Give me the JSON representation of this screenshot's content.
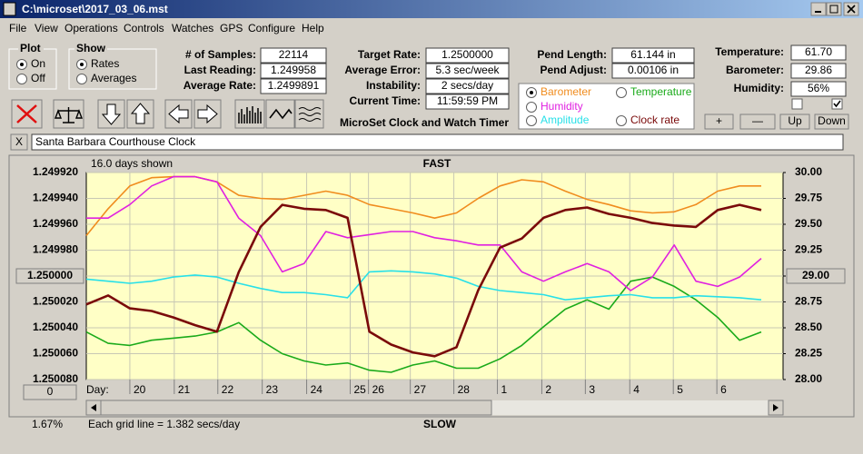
{
  "window": {
    "title": "C:\\microset\\2017_03_06.mst"
  },
  "menu": [
    "File",
    "View",
    "Operations",
    "Controls",
    "Watches",
    "GPS",
    "Configure",
    "Help"
  ],
  "plot": {
    "title": "Plot",
    "options": [
      "On",
      "Off"
    ],
    "selected": 0
  },
  "show": {
    "title": "Show",
    "options": [
      "Rates",
      "Averages"
    ],
    "selected": 0
  },
  "stats": [
    {
      "label": "# of Samples:",
      "value": "22114"
    },
    {
      "label": "Last Reading:",
      "value": "1.249958"
    },
    {
      "label": "Average Rate:",
      "value": "1.2499891"
    }
  ],
  "rates": [
    {
      "label": "Target Rate:",
      "value": "1.2500000"
    },
    {
      "label": "Average Error:",
      "value": "5.3 sec/week"
    },
    {
      "label": "Instability:",
      "value": "2 secs/day"
    },
    {
      "label": "Current Time:",
      "value": "11:59:59 PM"
    }
  ],
  "app_name": "MicroSet Clock and Watch Timer",
  "pendulum": [
    {
      "label": "Pend Length:",
      "value": "61.144 in"
    },
    {
      "label": "Pend Adjust:",
      "value": "0.00106 in"
    }
  ],
  "environment": [
    {
      "label": "Temperature:",
      "value": "61.70"
    },
    {
      "label": "Barometer:",
      "value": "29.86"
    },
    {
      "label": "Humidity:",
      "value": "56%"
    }
  ],
  "environment_checks": [
    false,
    true
  ],
  "buttons": [
    "+",
    "—",
    "Up",
    "Down"
  ],
  "clock": {
    "close": "X",
    "name": "Santa Barbara Courthouse Clock"
  },
  "chart_data": {
    "type": "line",
    "subtitle": "16.0 days shown",
    "top_label": "FAST",
    "bottom_label": "SLOW",
    "x_label": "Day:",
    "note": "Each grid line = 1.382 secs/day",
    "offset": "0",
    "zoom": "1.67%",
    "grid": true,
    "selected": 0,
    "xlim": [
      0,
      16
    ],
    "xticks": [
      {
        "value": 1.0,
        "label": "20"
      },
      {
        "value": 2.02,
        "label": "21"
      },
      {
        "value": 3.02,
        "label": "22"
      },
      {
        "value": 4.04,
        "label": "23"
      },
      {
        "value": 5.06,
        "label": "24"
      },
      {
        "value": 6.06,
        "label": "25"
      },
      {
        "value": 6.48,
        "label": "26"
      },
      {
        "value": 7.44,
        "label": "27"
      },
      {
        "value": 8.44,
        "label": "28"
      },
      {
        "value": 9.44,
        "label": "1"
      },
      {
        "value": 10.46,
        "label": "2"
      },
      {
        "value": 11.46,
        "label": "3"
      },
      {
        "value": 12.48,
        "label": "4"
      },
      {
        "value": 13.48,
        "label": "5"
      },
      {
        "value": 14.48,
        "label": "6"
      }
    ],
    "ylim": [
      1.25008,
      1.24992
    ],
    "yticks": [
      {
        "value": 1.24992,
        "label": "1.249920"
      },
      {
        "value": 1.24994,
        "label": "1.249940"
      },
      {
        "value": 1.24996,
        "label": "1.249960"
      },
      {
        "value": 1.24998,
        "label": "1.249980"
      },
      {
        "value": 1.25,
        "label": "1.250000"
      },
      {
        "value": 1.25002,
        "label": "1.250020"
      },
      {
        "value": 1.25004,
        "label": "1.250040"
      },
      {
        "value": 1.25006,
        "label": "1.250060"
      },
      {
        "value": 1.25008,
        "label": "1.250080"
      }
    ],
    "y2lim": [
      28,
      30
    ],
    "y2ticks": [
      {
        "value": 30,
        "label": "30.00"
      },
      29.75,
      {
        "value": 29.5,
        "label": "29.50"
      },
      29.25,
      {
        "value": 29,
        "label": "29.00"
      },
      28.75,
      {
        "value": 28.5,
        "label": "28.50"
      },
      28.25,
      {
        "value": 28,
        "label": "28.00"
      }
    ],
    "x": [
      0,
      0.5,
      1,
      1.5,
      2,
      2.5,
      3,
      3.5,
      4,
      4.5,
      5,
      5.5,
      6,
      6.5,
      7,
      7.5,
      8,
      8.5,
      9,
      9.5,
      10,
      10.5,
      11,
      11.5,
      12,
      12.5,
      13,
      13.5,
      14,
      14.5,
      15,
      15.5
    ],
    "series": [
      {
        "name": "Barometer",
        "color": "#f08c1e",
        "axis": "y2",
        "values": [
          29.39,
          29.65,
          29.87,
          29.95,
          29.96,
          29.96,
          29.91,
          29.78,
          29.75,
          29.74,
          29.78,
          29.82,
          29.78,
          29.69,
          29.65,
          29.61,
          29.56,
          29.61,
          29.75,
          29.87,
          29.93,
          29.91,
          29.82,
          29.74,
          29.69,
          29.63,
          29.61,
          29.62,
          29.69,
          29.82,
          29.87,
          29.87
        ]
      },
      {
        "name": "Temperature",
        "color": "#1aaa1a",
        "axis": "y2",
        "values": [
          28.46,
          28.35,
          28.33,
          28.38,
          28.4,
          28.42,
          28.46,
          28.55,
          28.38,
          28.25,
          28.18,
          28.14,
          28.16,
          28.09,
          28.07,
          28.14,
          28.18,
          28.11,
          28.11,
          28.2,
          28.33,
          28.51,
          28.68,
          28.77,
          28.68,
          28.95,
          28.99,
          28.9,
          28.77,
          28.6,
          28.38,
          28.46
        ]
      },
      {
        "name": "Humidity",
        "color": "#e020e0",
        "axis": "y2",
        "values": [
          29.56,
          29.56,
          29.69,
          29.87,
          29.96,
          29.96,
          29.91,
          29.56,
          29.39,
          29.04,
          29.12,
          29.43,
          29.37,
          29.4,
          29.43,
          29.43,
          29.37,
          29.34,
          29.3,
          29.3,
          29.04,
          28.95,
          29.04,
          29.12,
          29.04,
          28.86,
          28.99,
          29.3,
          28.95,
          28.9,
          28.99,
          29.17
        ]
      },
      {
        "name": "Amplitude",
        "color": "#28e0e8",
        "axis": "y2",
        "values": [
          28.97,
          28.95,
          28.93,
          28.95,
          28.99,
          29.01,
          28.99,
          28.93,
          28.88,
          28.84,
          28.84,
          28.82,
          28.79,
          29.04,
          29.05,
          29.04,
          29.02,
          28.98,
          28.9,
          28.86,
          28.84,
          28.82,
          28.77,
          28.79,
          28.81,
          28.82,
          28.79,
          28.79,
          28.81,
          28.8,
          28.79,
          28.77
        ]
      },
      {
        "name": "Clock rate",
        "color": "#7a0a0a",
        "axis": "y",
        "values": [
          1.250022,
          1.250015,
          1.250025,
          1.250027,
          1.250032,
          1.250038,
          1.250043,
          1.249997,
          1.249962,
          1.249945,
          1.249948,
          1.249949,
          1.249955,
          1.250043,
          1.250053,
          1.250059,
          1.250062,
          1.250055,
          1.250011,
          1.249978,
          1.249971,
          1.249955,
          1.249949,
          1.249947,
          1.249952,
          1.249955,
          1.249959,
          1.249961,
          1.249962,
          1.249949,
          1.249945,
          1.249949
        ]
      }
    ]
  }
}
